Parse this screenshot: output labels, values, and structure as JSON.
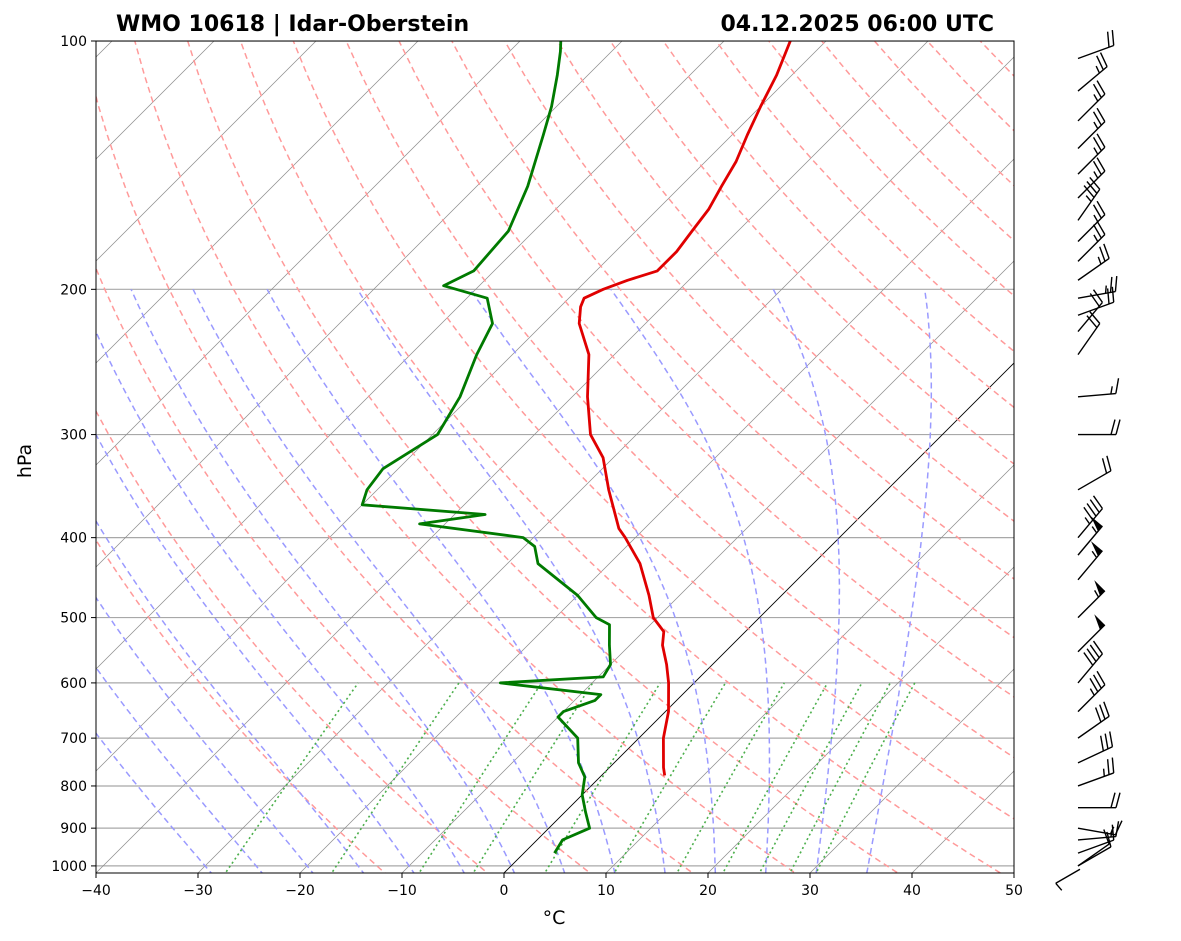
{
  "header": {
    "station": "WMO 10618 | Idar-Oberstein",
    "datetime": "04.12.2025 06:00 UTC"
  },
  "colors": {
    "temperature": "#e00000",
    "dewpoint": "#007a00",
    "dry_adiabat": "#ff9a9a",
    "moist_adiabat": "#9a9aff",
    "mixing_ratio": "#4caf4c",
    "isotherm": "#808080",
    "isobar": "#a8a8a8"
  },
  "chart_data": {
    "type": "skew-t log-p",
    "title": "WMO 10618 | Idar-Oberstein",
    "subtitle": "04.12.2025 06:00 UTC",
    "xlabel": "°C",
    "ylabel": "hPa",
    "xlim": [
      -40,
      50
    ],
    "ylim": [
      1020,
      100
    ],
    "x_ticks": [
      -40,
      -30,
      -20,
      -10,
      0,
      10,
      20,
      30,
      40,
      50
    ],
    "x_tick_labels": [
      "−40",
      "−30",
      "−20",
      "−10",
      "0",
      "10",
      "20",
      "30",
      "40",
      "50"
    ],
    "y_ticks": [
      1000,
      900,
      800,
      700,
      600,
      500,
      400,
      300,
      200,
      100
    ],
    "y_tick_labels": [
      "1000",
      "900",
      "800",
      "700",
      "600",
      "500",
      "400",
      "300",
      "200",
      "100"
    ],
    "grid": true,
    "series": [
      {
        "name": "temperature",
        "points": [
          [
            777,
            6.2
          ],
          [
            760,
            5.3
          ],
          [
            700,
            2.4
          ],
          [
            650,
            0.3
          ],
          [
            600,
            -2.5
          ],
          [
            570,
            -4.5
          ],
          [
            540,
            -6.8
          ],
          [
            520,
            -8.0
          ],
          [
            500,
            -10.4
          ],
          [
            470,
            -13.0
          ],
          [
            430,
            -17.0
          ],
          [
            400,
            -21.0
          ],
          [
            390,
            -22.5
          ],
          [
            350,
            -27.3
          ],
          [
            320,
            -31.0
          ],
          [
            300,
            -34.5
          ],
          [
            270,
            -38.5
          ],
          [
            240,
            -42.5
          ],
          [
            220,
            -46.5
          ],
          [
            210,
            -48.0
          ],
          [
            205,
            -48.5
          ],
          [
            200,
            -47.5
          ],
          [
            195,
            -46.0
          ],
          [
            190,
            -44.0
          ],
          [
            180,
            -44.0
          ],
          [
            170,
            -44.5
          ],
          [
            160,
            -45.0
          ],
          [
            150,
            -46.0
          ],
          [
            140,
            -47.0
          ],
          [
            130,
            -48.5
          ],
          [
            120,
            -50.0
          ],
          [
            110,
            -51.5
          ],
          [
            100,
            -53.5
          ]
        ]
      },
      {
        "name": "dewpoint",
        "points": [
          [
            965,
            3.0
          ],
          [
            930,
            2.5
          ],
          [
            900,
            4.0
          ],
          [
            860,
            2.0
          ],
          [
            820,
            0.0
          ],
          [
            780,
            -1.5
          ],
          [
            750,
            -3.5
          ],
          [
            700,
            -6.0
          ],
          [
            660,
            -10.0
          ],
          [
            650,
            -10.0
          ],
          [
            630,
            -8.0
          ],
          [
            620,
            -8.0
          ],
          [
            600,
            -19.0
          ],
          [
            590,
            -9.5
          ],
          [
            570,
            -10.0
          ],
          [
            540,
            -12.0
          ],
          [
            510,
            -14.0
          ],
          [
            500,
            -16.0
          ],
          [
            470,
            -20.0
          ],
          [
            430,
            -27.0
          ],
          [
            410,
            -29.0
          ],
          [
            400,
            -31.0
          ],
          [
            385,
            -42.5
          ],
          [
            375,
            -37.0
          ],
          [
            365,
            -50.0
          ],
          [
            350,
            -51.0
          ],
          [
            330,
            -51.5
          ],
          [
            300,
            -49.5
          ],
          [
            270,
            -51.0
          ],
          [
            240,
            -53.5
          ],
          [
            220,
            -55.0
          ],
          [
            205,
            -58.0
          ],
          [
            198,
            -63.5
          ],
          [
            190,
            -62.0
          ],
          [
            170,
            -62.5
          ],
          [
            150,
            -65.0
          ],
          [
            130,
            -68.5
          ],
          [
            120,
            -70.5
          ],
          [
            110,
            -73.0
          ],
          [
            103,
            -75.0
          ],
          [
            100,
            -76.0
          ]
        ]
      }
    ],
    "dry_adiabats_theta_K": [
      260,
      270,
      280,
      290,
      300,
      310,
      320,
      330,
      340,
      350,
      360,
      370,
      380,
      390,
      400,
      410,
      420,
      430,
      440,
      450,
      460,
      470
    ],
    "moist_adiabats_T0_C": [
      -30,
      -25,
      -20,
      -15,
      -10,
      -5,
      0,
      5,
      10,
      15,
      20,
      25,
      30,
      35
    ],
    "mixing_ratios_g_per_kg": [
      0.4,
      1,
      2,
      3,
      5,
      8,
      12,
      16,
      20,
      24,
      28
    ],
    "wind_barbs": [
      {
        "p": 1000,
        "speed_kt": 10,
        "dir_deg": 240
      },
      {
        "p": 1000,
        "speed_kt": 10,
        "dir_deg": 235
      },
      {
        "p": 965,
        "speed_kt": 10,
        "dir_deg": 250
      },
      {
        "p": 930,
        "speed_kt": 15,
        "dir_deg": 265
      },
      {
        "p": 900,
        "speed_kt": 15,
        "dir_deg": 280
      },
      {
        "p": 850,
        "speed_kt": 20,
        "dir_deg": 270
      },
      {
        "p": 800,
        "speed_kt": 25,
        "dir_deg": 250
      },
      {
        "p": 750,
        "speed_kt": 30,
        "dir_deg": 245
      },
      {
        "p": 700,
        "speed_kt": 30,
        "dir_deg": 235
      },
      {
        "p": 650,
        "speed_kt": 35,
        "dir_deg": 225
      },
      {
        "p": 600,
        "speed_kt": 40,
        "dir_deg": 220
      },
      {
        "p": 550,
        "speed_kt": 50,
        "dir_deg": 225
      },
      {
        "p": 500,
        "speed_kt": 55,
        "dir_deg": 225
      },
      {
        "p": 450,
        "speed_kt": 55,
        "dir_deg": 220
      },
      {
        "p": 420,
        "speed_kt": 55,
        "dir_deg": 220
      },
      {
        "p": 400,
        "speed_kt": 45,
        "dir_deg": 220
      },
      {
        "p": 350,
        "speed_kt": 20,
        "dir_deg": 240
      },
      {
        "p": 300,
        "speed_kt": 20,
        "dir_deg": 270
      },
      {
        "p": 270,
        "speed_kt": 15,
        "dir_deg": 265
      },
      {
        "p": 240,
        "speed_kt": 20,
        "dir_deg": 215
      },
      {
        "p": 225,
        "speed_kt": 20,
        "dir_deg": 220
      },
      {
        "p": 215,
        "speed_kt": 20,
        "dir_deg": 250
      },
      {
        "p": 205,
        "speed_kt": 25,
        "dir_deg": 260
      },
      {
        "p": 195,
        "speed_kt": 25,
        "dir_deg": 235
      },
      {
        "p": 185,
        "speed_kt": 25,
        "dir_deg": 225
      },
      {
        "p": 175,
        "speed_kt": 25,
        "dir_deg": 225
      },
      {
        "p": 165,
        "speed_kt": 35,
        "dir_deg": 215
      },
      {
        "p": 155,
        "speed_kt": 25,
        "dir_deg": 225
      },
      {
        "p": 145,
        "speed_kt": 25,
        "dir_deg": 225
      },
      {
        "p": 135,
        "speed_kt": 25,
        "dir_deg": 225
      },
      {
        "p": 125,
        "speed_kt": 25,
        "dir_deg": 225
      },
      {
        "p": 115,
        "speed_kt": 25,
        "dir_deg": 230
      },
      {
        "p": 105,
        "speed_kt": 20,
        "dir_deg": 250
      }
    ],
    "hodograph_marker": {
      "description": "small wind sample at right edge",
      "speed_kt": 10,
      "dir_deg": 240
    }
  }
}
